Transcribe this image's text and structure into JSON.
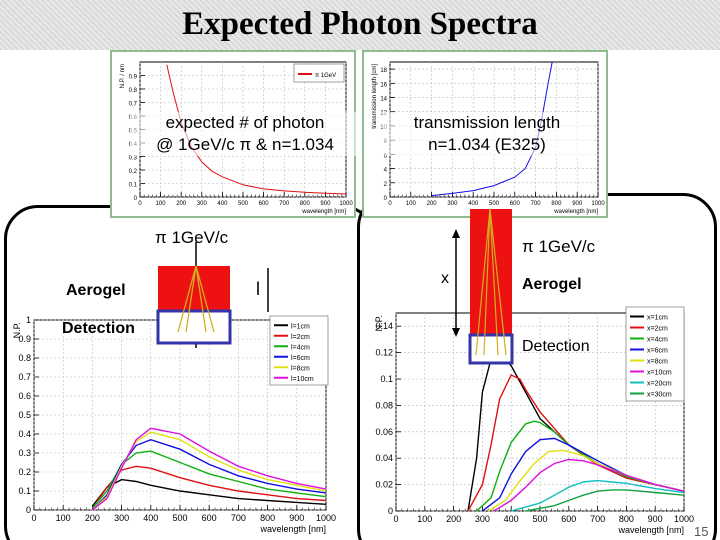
{
  "slide": {
    "title": "Expected Photon Spectra",
    "page_number": "15"
  },
  "top_left": {
    "caption_line1": "expected # of photon",
    "caption_line2": "@ 1GeV/c π & n=1.034",
    "legend": "π 1GeV",
    "ylabel": "N.P. / nm",
    "xlabel": "wavelength [nm]",
    "yticks": [
      "0",
      "0.1",
      "0.2",
      "0.3",
      "0.4",
      "0.5",
      "0.6",
      "0.7",
      "0.8",
      "0.9"
    ],
    "xticks": [
      "0",
      "100",
      "200",
      "300",
      "400",
      "500",
      "600",
      "700",
      "800",
      "900",
      "1000"
    ]
  },
  "top_right": {
    "caption_line1": "transmission length",
    "caption_line2": "n=1.034 (E325)",
    "ylabel": "transmission length [cm]",
    "xlabel": "wavelength [nm]",
    "yticks": [
      "0",
      "2",
      "4",
      "6",
      "8",
      "10",
      "12",
      "14",
      "16",
      "18"
    ],
    "xticks": [
      "0",
      "100",
      "200",
      "300",
      "400",
      "500",
      "600",
      "700",
      "800",
      "900",
      "1000"
    ]
  },
  "left_diagram": {
    "beam_label": "π 1GeV/c",
    "aerogel_label": "Aerogel",
    "detection_label": "Detection",
    "length_label": "l"
  },
  "right_diagram": {
    "beam_label": "π 1GeV/c",
    "aerogel_label": "Aerogel",
    "detection_label": "Detection",
    "distance_label": "x"
  },
  "bottom_left": {
    "ylabel": "N.P.",
    "xlabel": "wavelength [nm]",
    "yticks": [
      "0",
      "0.1",
      "0.2",
      "0.3",
      "0.4",
      "0.5",
      "0.6",
      "0.7",
      "0.8",
      "0.9",
      "1"
    ],
    "xticks": [
      "0",
      "100",
      "200",
      "300",
      "400",
      "500",
      "600",
      "700",
      "800",
      "900",
      "1000"
    ],
    "legend": [
      "l=1cm",
      "l=2cm",
      "l=4cm",
      "l=6cm",
      "l=8cm",
      "l=10cm"
    ]
  },
  "bottom_right": {
    "ylabel": "N.P.",
    "xlabel": "wavelength [nm]",
    "yticks": [
      "0",
      "0.02",
      "0.04",
      "0.06",
      "0.08",
      "0.1",
      "0.12",
      "0.14"
    ],
    "xticks": [
      "0",
      "100",
      "200",
      "300",
      "400",
      "500",
      "600",
      "700",
      "800",
      "900",
      "1000"
    ],
    "legend": [
      "x=1cm",
      "x=2cm",
      "x=4cm",
      "x=6cm",
      "x=8cm",
      "x=10cm",
      "x=20cm",
      "x=30cm"
    ]
  },
  "chart_data": [
    {
      "type": "line",
      "xlim": [
        0,
        1000
      ],
      "ylim": [
        0,
        1
      ],
      "series": [
        {
          "name": "π 1GeV",
          "color": "#e01010",
          "x": [
            130,
            160,
            200,
            250,
            300,
            350,
            400,
            450,
            500,
            600,
            700,
            800,
            900,
            1000
          ],
          "y": [
            0.98,
            0.78,
            0.55,
            0.37,
            0.26,
            0.19,
            0.15,
            0.12,
            0.09,
            0.06,
            0.045,
            0.035,
            0.028,
            0.022
          ]
        }
      ]
    },
    {
      "type": "line",
      "xlim": [
        0,
        1000
      ],
      "ylim": [
        0,
        19
      ],
      "series": [
        {
          "color": "#1010e0",
          "x": [
            200,
            300,
            400,
            500,
            600,
            650,
            700,
            730,
            760,
            780
          ],
          "y": [
            0.2,
            0.5,
            0.9,
            1.6,
            2.8,
            4.0,
            7.0,
            11.0,
            16.0,
            19.0
          ]
        }
      ]
    },
    {
      "type": "line",
      "xlim": [
        0,
        1000
      ],
      "ylim": [
        0,
        1
      ],
      "series": [
        {
          "name": "l=1cm",
          "color": "#000000",
          "x": [
            200,
            250,
            300,
            350,
            400,
            500,
            600,
            700,
            800,
            900,
            1000
          ],
          "y": [
            0.02,
            0.12,
            0.16,
            0.15,
            0.13,
            0.1,
            0.08,
            0.06,
            0.05,
            0.04,
            0.03
          ]
        },
        {
          "name": "l=2cm",
          "color": "#e01010",
          "x": [
            200,
            250,
            300,
            350,
            400,
            500,
            600,
            700,
            800,
            900,
            1000
          ],
          "y": [
            0.01,
            0.12,
            0.21,
            0.23,
            0.22,
            0.17,
            0.13,
            0.1,
            0.08,
            0.06,
            0.05
          ]
        },
        {
          "name": "l=4cm",
          "color": "#10b010",
          "x": [
            200,
            250,
            300,
            350,
            400,
            500,
            600,
            700,
            800,
            900,
            1000
          ],
          "y": [
            0.01,
            0.1,
            0.24,
            0.3,
            0.31,
            0.25,
            0.19,
            0.15,
            0.11,
            0.09,
            0.07
          ]
        },
        {
          "name": "l=6cm",
          "color": "#1010e0",
          "x": [
            200,
            250,
            300,
            350,
            400,
            500,
            600,
            700,
            800,
            900,
            1000
          ],
          "y": [
            0.0,
            0.08,
            0.24,
            0.34,
            0.37,
            0.32,
            0.24,
            0.18,
            0.14,
            0.11,
            0.09
          ]
        },
        {
          "name": "l=8cm",
          "color": "#e0e010",
          "x": [
            200,
            250,
            300,
            350,
            400,
            500,
            600,
            700,
            800,
            900,
            1000
          ],
          "y": [
            0.0,
            0.07,
            0.23,
            0.36,
            0.41,
            0.37,
            0.28,
            0.21,
            0.16,
            0.13,
            0.1
          ]
        },
        {
          "name": "l=10cm",
          "color": "#e010e0",
          "x": [
            200,
            250,
            300,
            350,
            400,
            500,
            600,
            700,
            800,
            900,
            1000
          ],
          "y": [
            0.0,
            0.06,
            0.22,
            0.37,
            0.43,
            0.4,
            0.31,
            0.23,
            0.18,
            0.14,
            0.11
          ]
        }
      ]
    },
    {
      "type": "line",
      "xlim": [
        0,
        1000
      ],
      "ylim": [
        0,
        0.15
      ],
      "series": [
        {
          "name": "x=1cm",
          "color": "#000000",
          "x": [
            250,
            280,
            300,
            330,
            360,
            400,
            450,
            500,
            600,
            700,
            800,
            900,
            1000
          ],
          "y": [
            0.0,
            0.04,
            0.09,
            0.115,
            0.12,
            0.11,
            0.09,
            0.07,
            0.05,
            0.035,
            0.025,
            0.02,
            0.015
          ]
        },
        {
          "name": "x=2cm",
          "color": "#e01010",
          "x": [
            250,
            300,
            330,
            360,
            400,
            430,
            450,
            500,
            600,
            700,
            800,
            900,
            1000
          ],
          "y": [
            0.0,
            0.02,
            0.05,
            0.085,
            0.103,
            0.1,
            0.092,
            0.075,
            0.05,
            0.035,
            0.025,
            0.02,
            0.015
          ]
        },
        {
          "name": "x=4cm",
          "color": "#10b010",
          "x": [
            280,
            330,
            360,
            400,
            450,
            480,
            500,
            550,
            600,
            700,
            800,
            900,
            1000
          ],
          "y": [
            0.0,
            0.01,
            0.03,
            0.052,
            0.066,
            0.068,
            0.067,
            0.06,
            0.05,
            0.036,
            0.026,
            0.02,
            0.015
          ]
        },
        {
          "name": "x=6cm",
          "color": "#1010e0",
          "x": [
            300,
            360,
            400,
            450,
            500,
            550,
            600,
            700,
            800,
            900,
            1000
          ],
          "y": [
            0.0,
            0.01,
            0.028,
            0.045,
            0.054,
            0.055,
            0.05,
            0.038,
            0.027,
            0.02,
            0.015
          ]
        },
        {
          "name": "x=8cm",
          "color": "#e0e010",
          "x": [
            320,
            380,
            420,
            480,
            530,
            580,
            650,
            700,
            800,
            900,
            1000
          ],
          "y": [
            0.0,
            0.008,
            0.02,
            0.036,
            0.045,
            0.046,
            0.042,
            0.036,
            0.027,
            0.02,
            0.015
          ]
        },
        {
          "name": "x=10cm",
          "color": "#e010e0",
          "x": [
            340,
            400,
            450,
            500,
            550,
            600,
            650,
            700,
            800,
            900,
            1000
          ],
          "y": [
            0.0,
            0.008,
            0.018,
            0.029,
            0.036,
            0.039,
            0.038,
            0.035,
            0.027,
            0.02,
            0.015
          ]
        },
        {
          "name": "x=20cm",
          "color": "#10c0c0",
          "x": [
            400,
            500,
            550,
            600,
            650,
            700,
            750,
            800,
            900,
            1000
          ],
          "y": [
            0.0,
            0.006,
            0.012,
            0.018,
            0.022,
            0.023,
            0.022,
            0.021,
            0.017,
            0.014
          ]
        },
        {
          "name": "x=30cm",
          "color": "#10a040",
          "x": [
            450,
            550,
            600,
            650,
            700,
            750,
            800,
            900,
            1000
          ],
          "y": [
            0.0,
            0.004,
            0.008,
            0.012,
            0.015,
            0.016,
            0.016,
            0.014,
            0.012
          ]
        }
      ]
    }
  ]
}
